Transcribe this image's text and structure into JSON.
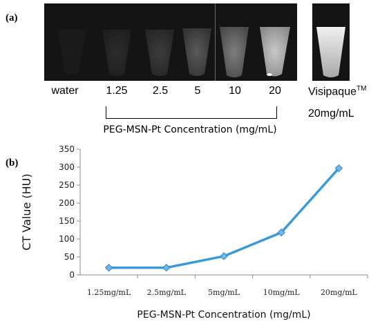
{
  "panels": {
    "a": "(a)",
    "b": "(b)"
  },
  "ct_images": {
    "samples": [
      "water",
      "1.25",
      "2.5",
      "5",
      "10",
      "20"
    ],
    "reference_name": "Visipaque",
    "reference_tm": "TM",
    "reference_conc": "20mg/mL",
    "bracket_caption": "PEG-MSN-Pt Concentration (mg/mL)"
  },
  "chart_data": {
    "type": "line",
    "categories": [
      "1.25mg/mL",
      "2.5mg/mL",
      "5mg/mL",
      "10mg/mL",
      "20mg/mL"
    ],
    "series": [
      {
        "values": [
          20,
          20,
          52,
          118,
          297
        ],
        "color": "#3a9ad9",
        "marker": "diamond"
      }
    ],
    "xlabel": "PEG-MSN-Pt Concentration (mg/mL)",
    "ylabel": "CT Value (HU)",
    "ylim": [
      0,
      350
    ],
    "yticks": [
      0,
      50,
      100,
      150,
      200,
      250,
      300,
      350
    ],
    "grid": false,
    "legend": "none"
  }
}
